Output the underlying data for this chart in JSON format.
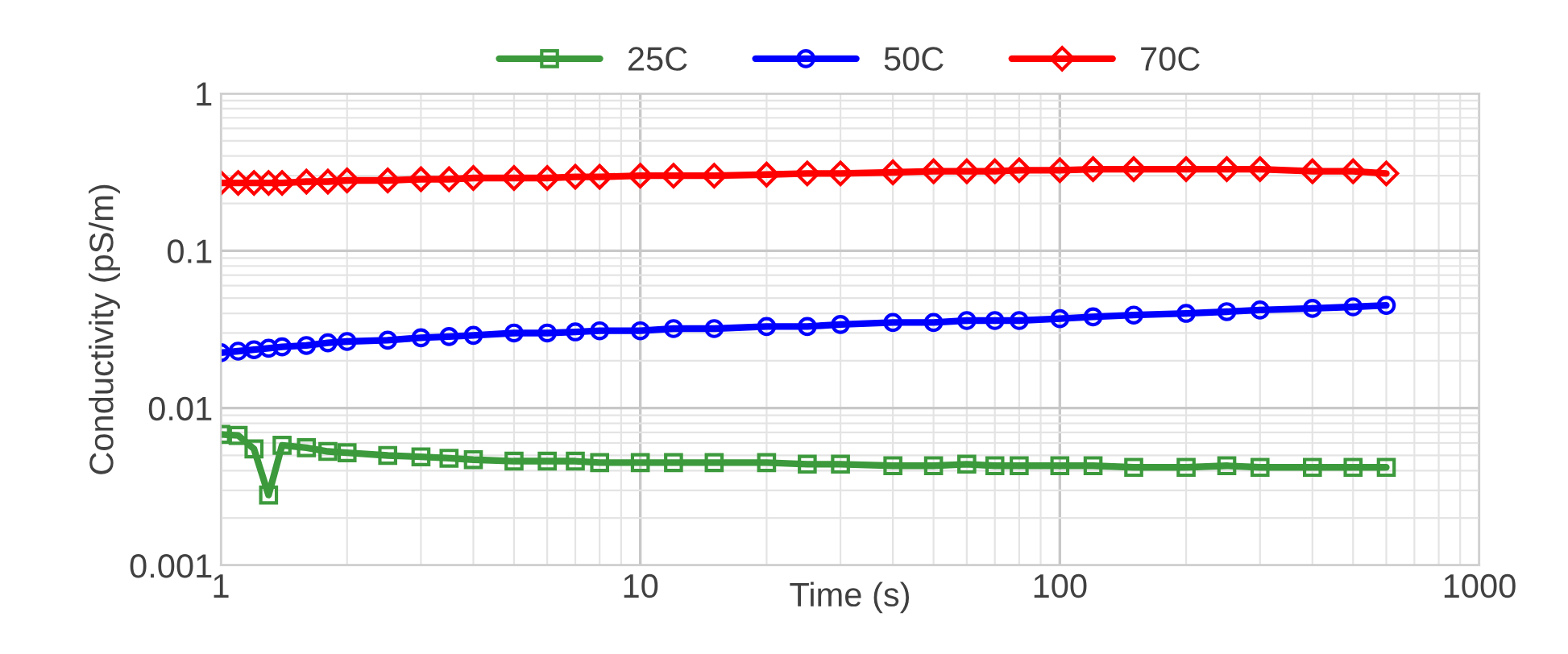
{
  "chart_data": {
    "type": "line",
    "xlabel": "Time (s)",
    "ylabel": "Conductivity (pS/m)",
    "log": "xy",
    "grid": true,
    "legend": "top",
    "x": [
      1,
      1.1,
      1.2,
      1.3,
      1.4,
      1.6,
      1.8,
      2,
      2.5,
      3,
      3.5,
      4,
      5,
      6,
      7,
      8,
      10,
      12,
      15,
      20,
      25,
      30,
      40,
      50,
      60,
      70,
      80,
      100,
      120,
      150,
      200,
      250,
      300,
      400,
      500,
      600
    ],
    "xlim": [
      1,
      1000
    ],
    "xticks": [
      1,
      10,
      100,
      1000
    ],
    "ylim": [
      0.001,
      1
    ],
    "yticks": [
      0.001,
      0.01,
      0.1,
      1
    ],
    "series": [
      {
        "name": "25C",
        "color": "#3c9a3c",
        "marker": "square",
        "values": [
          0.0068,
          0.0067,
          0.0055,
          0.0028,
          0.0058,
          0.0056,
          0.0053,
          0.0052,
          0.005,
          0.0049,
          0.0048,
          0.0047,
          0.0046,
          0.0046,
          0.0046,
          0.0045,
          0.0045,
          0.0045,
          0.0045,
          0.0045,
          0.0044,
          0.0044,
          0.0043,
          0.0043,
          0.0044,
          0.0043,
          0.0043,
          0.0043,
          0.0043,
          0.0042,
          0.0042,
          0.0043,
          0.0042,
          0.0042,
          0.0042,
          0.0042
        ]
      },
      {
        "name": "50C",
        "color": "#0000ff",
        "marker": "circle",
        "values": [
          0.0225,
          0.023,
          0.0235,
          0.024,
          0.0245,
          0.025,
          0.026,
          0.0265,
          0.027,
          0.028,
          0.0285,
          0.029,
          0.03,
          0.03,
          0.0305,
          0.031,
          0.031,
          0.032,
          0.032,
          0.033,
          0.033,
          0.034,
          0.035,
          0.035,
          0.036,
          0.036,
          0.036,
          0.037,
          0.038,
          0.039,
          0.04,
          0.041,
          0.042,
          0.043,
          0.044,
          0.045
        ]
      },
      {
        "name": "70C",
        "color": "#ff0000",
        "marker": "diamond",
        "values": [
          0.27,
          0.27,
          0.27,
          0.27,
          0.27,
          0.275,
          0.275,
          0.28,
          0.28,
          0.285,
          0.285,
          0.29,
          0.29,
          0.29,
          0.295,
          0.295,
          0.3,
          0.3,
          0.3,
          0.305,
          0.31,
          0.31,
          0.315,
          0.32,
          0.32,
          0.32,
          0.325,
          0.325,
          0.33,
          0.33,
          0.33,
          0.33,
          0.33,
          0.32,
          0.32,
          0.31
        ]
      }
    ]
  }
}
